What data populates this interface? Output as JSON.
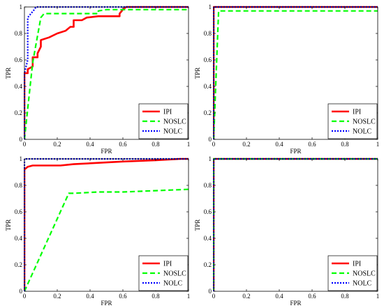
{
  "chart_data": [
    {
      "type": "line",
      "xlabel": "FPR",
      "ylabel": "TPR",
      "xlim": [
        0,
        1
      ],
      "ylim": [
        0,
        1
      ],
      "xticks": [
        "0",
        "0.2",
        "0.4",
        "0.6",
        "0.8",
        "1"
      ],
      "yticks": [
        "0",
        "0.2",
        "0.4",
        "0.6",
        "0.8",
        "1"
      ],
      "legend": "bottom-right",
      "series": [
        {
          "name": "IPI",
          "color": "#ff0000",
          "dash": "solid",
          "x": [
            0,
            0,
            0.02,
            0.02,
            0.05,
            0.05,
            0.08,
            0.08,
            0.1,
            0.1,
            0.15,
            0.2,
            0.25,
            0.28,
            0.3,
            0.3,
            0.35,
            0.35,
            0.38,
            0.38,
            0.45,
            0.58,
            0.58,
            0.6,
            0.62,
            1
          ],
          "y": [
            0,
            0.5,
            0.5,
            0.53,
            0.55,
            0.62,
            0.62,
            0.65,
            0.7,
            0.75,
            0.77,
            0.8,
            0.82,
            0.85,
            0.85,
            0.9,
            0.9,
            0.9,
            0.92,
            0.92,
            0.93,
            0.93,
            0.95,
            0.98,
            1,
            1
          ]
        },
        {
          "name": "NOSLC",
          "color": "#00ff00",
          "dash": "dashed",
          "x": [
            0,
            0.05,
            0.1,
            0.12,
            0.45,
            0.45,
            0.5,
            1
          ],
          "y": [
            0,
            0.58,
            0.92,
            0.95,
            0.95,
            0.97,
            0.98,
            0.98
          ]
        },
        {
          "name": "NOLC",
          "color": "#0000ff",
          "dash": "dotted",
          "x": [
            0,
            0,
            0.02,
            0.02,
            0.06,
            0.07,
            0.1,
            1
          ],
          "y": [
            0,
            0.5,
            0.6,
            0.92,
            0.98,
            1,
            1,
            1
          ]
        }
      ]
    },
    {
      "type": "line",
      "xlabel": "FPR",
      "ylabel": "TPR",
      "xlim": [
        0,
        1
      ],
      "ylim": [
        0,
        1
      ],
      "xticks": [
        "0",
        "0.2",
        "0.4",
        "0.6",
        "0.8",
        "1"
      ],
      "yticks": [
        "0",
        "0.2",
        "0.4",
        "0.6",
        "0.8",
        "1"
      ],
      "legend": "bottom-right",
      "series": [
        {
          "name": "IPI",
          "color": "#ff0000",
          "dash": "solid",
          "x": [
            0,
            0,
            1
          ],
          "y": [
            0,
            1,
            1
          ]
        },
        {
          "name": "NOSLC",
          "color": "#00ff00",
          "dash": "dashed",
          "x": [
            0,
            0.03,
            1
          ],
          "y": [
            0,
            0.97,
            0.97
          ]
        },
        {
          "name": "NOLC",
          "color": "#0000ff",
          "dash": "dotted",
          "x": [
            0,
            0,
            1
          ],
          "y": [
            0,
            1,
            1
          ]
        }
      ]
    },
    {
      "type": "line",
      "xlabel": "FPR",
      "ylabel": "TPR",
      "xlim": [
        0,
        1
      ],
      "ylim": [
        0,
        1
      ],
      "xticks": [
        "0",
        "0.2",
        "0.4",
        "0.6",
        "0.8",
        "1"
      ],
      "yticks": [
        "0",
        "0.2",
        "0.4",
        "0.6",
        "0.8",
        "1"
      ],
      "legend": "bottom-right",
      "series": [
        {
          "name": "IPI",
          "color": "#ff0000",
          "dash": "solid",
          "x": [
            0,
            0,
            0.02,
            0.05,
            0.22,
            0.3,
            0.45,
            0.6,
            0.8,
            0.95,
            1
          ],
          "y": [
            0,
            0.92,
            0.94,
            0.95,
            0.95,
            0.96,
            0.97,
            0.98,
            0.99,
            1,
            1
          ]
        },
        {
          "name": "NOSLC",
          "color": "#00ff00",
          "dash": "dashed",
          "x": [
            0,
            0.27,
            0.3,
            0.45,
            0.6,
            0.8,
            1
          ],
          "y": [
            0,
            0.74,
            0.74,
            0.75,
            0.75,
            0.76,
            0.77
          ]
        },
        {
          "name": "NOLC",
          "color": "#0000ff",
          "dash": "dotted",
          "x": [
            0,
            0,
            1
          ],
          "y": [
            0,
            1,
            1
          ]
        }
      ]
    },
    {
      "type": "line",
      "xlabel": "FPR",
      "ylabel": "TPR",
      "xlim": [
        0,
        1
      ],
      "ylim": [
        0,
        1
      ],
      "xticks": [
        "0",
        "0.2",
        "0.4",
        "0.6",
        "0.8",
        "1"
      ],
      "yticks": [
        "0",
        "0.2",
        "0.4",
        "0.6",
        "0.8",
        "1"
      ],
      "legend": "bottom-right",
      "series": [
        {
          "name": "IPI",
          "color": "#ff0000",
          "dash": "solid",
          "x": [
            0,
            0,
            1
          ],
          "y": [
            0,
            1,
            1
          ]
        },
        {
          "name": "NOSLC",
          "color": "#00ff00",
          "dash": "dashed",
          "x": [
            0,
            0,
            1
          ],
          "y": [
            0,
            1,
            1
          ]
        },
        {
          "name": "NOLC",
          "color": "#0000ff",
          "dash": "dotted",
          "x": [
            0,
            0,
            1
          ],
          "y": [
            0,
            1,
            1
          ]
        }
      ]
    }
  ]
}
